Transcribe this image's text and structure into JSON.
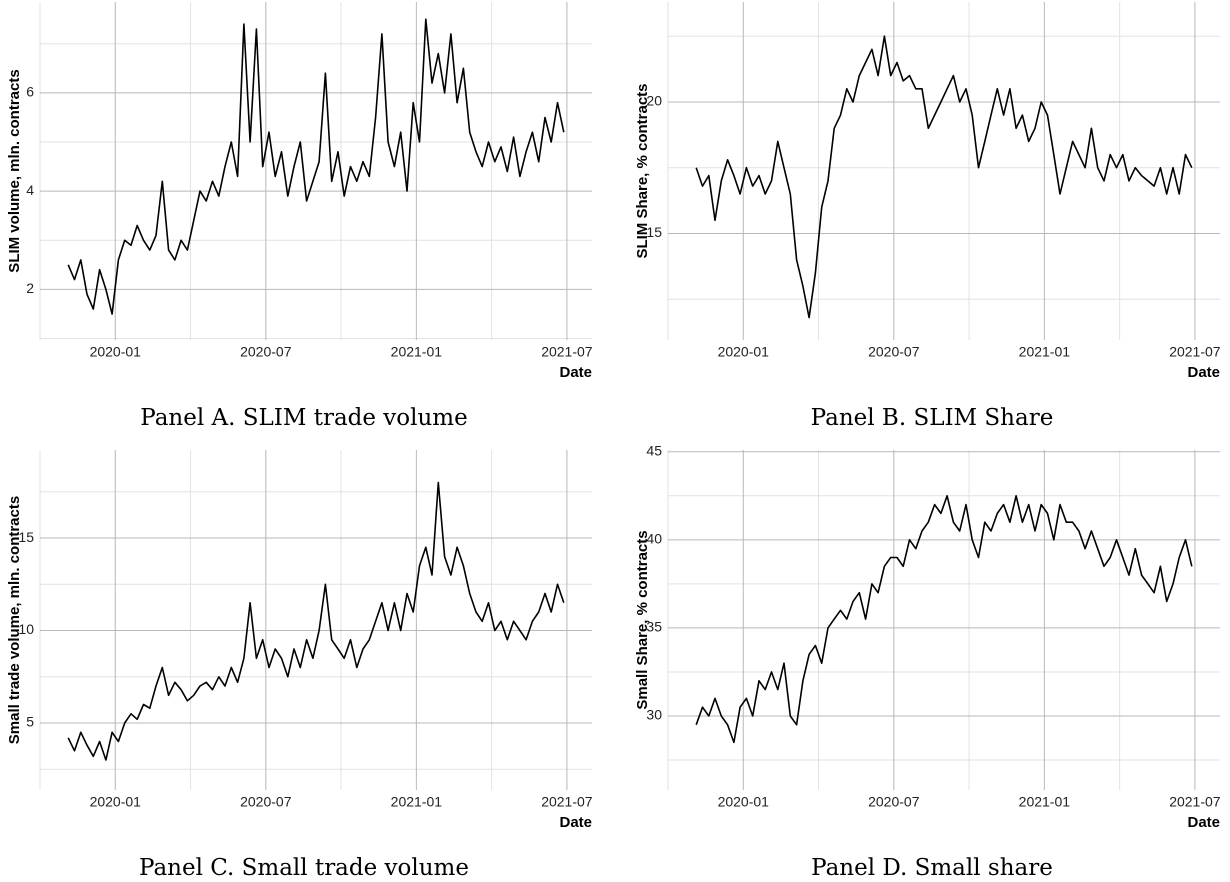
{
  "chart_data": [
    {
      "type": "line",
      "caption": "Panel A. SLIM trade volume",
      "ylabel": "SLIM volume, mln. contracts",
      "xlabel": "Date",
      "color": "#000000",
      "x": [
        "2019-11",
        "2019-11",
        "2019-11",
        "2019-11",
        "2019-12",
        "2019-12",
        "2019-12",
        "2019-12",
        "2020-01",
        "2020-01",
        "2020-01",
        "2020-01",
        "2020-02",
        "2020-02",
        "2020-02",
        "2020-02",
        "2020-03",
        "2020-03",
        "2020-03",
        "2020-03",
        "2020-04",
        "2020-04",
        "2020-04",
        "2020-04",
        "2020-05",
        "2020-05",
        "2020-05",
        "2020-05",
        "2020-06",
        "2020-06",
        "2020-06",
        "2020-06",
        "2020-07",
        "2020-07",
        "2020-07",
        "2020-07",
        "2020-08",
        "2020-08",
        "2020-08",
        "2020-08",
        "2020-09",
        "2020-09",
        "2020-09",
        "2020-09",
        "2020-10",
        "2020-10",
        "2020-10",
        "2020-10",
        "2020-11",
        "2020-11",
        "2020-11",
        "2020-11",
        "2020-12",
        "2020-12",
        "2020-12",
        "2020-12",
        "2021-01",
        "2021-01",
        "2021-01",
        "2021-01",
        "2021-02",
        "2021-02",
        "2021-02",
        "2021-02",
        "2021-03",
        "2021-03",
        "2021-03",
        "2021-03",
        "2021-04",
        "2021-04",
        "2021-04",
        "2021-04",
        "2021-05",
        "2021-05",
        "2021-05",
        "2021-05",
        "2021-06",
        "2021-06",
        "2021-06",
        "2021-06"
      ],
      "values": [
        2.5,
        2.2,
        2.6,
        1.9,
        1.6,
        2.4,
        2.0,
        1.5,
        2.6,
        3.0,
        2.9,
        3.3,
        3.0,
        2.8,
        3.1,
        4.2,
        2.8,
        2.6,
        3.0,
        2.8,
        3.4,
        4.0,
        3.8,
        4.2,
        3.9,
        4.5,
        5.0,
        4.3,
        7.4,
        5.0,
        7.3,
        4.5,
        5.2,
        4.3,
        4.8,
        3.9,
        4.5,
        5.0,
        3.8,
        4.2,
        4.6,
        6.4,
        4.2,
        4.8,
        3.9,
        4.5,
        4.2,
        4.6,
        4.3,
        5.5,
        7.2,
        5.0,
        4.5,
        5.2,
        4.0,
        5.8,
        5.0,
        7.5,
        6.2,
        6.8,
        6.0,
        7.2,
        5.8,
        6.5,
        5.2,
        4.8,
        4.5,
        5.0,
        4.6,
        4.9,
        4.4,
        5.1,
        4.3,
        4.8,
        5.2,
        4.6,
        5.5,
        5.0,
        5.8,
        5.2
      ],
      "xlim": [
        "2019-10",
        "2021-08"
      ],
      "xticks": [
        "2020-01",
        "2020-07",
        "2021-01",
        "2021-07"
      ],
      "xminor": [
        "2019-10",
        "2020-04",
        "2020-10",
        "2021-04"
      ],
      "ylim": [
        0.97,
        7.85
      ],
      "yticks": [
        2,
        4,
        6
      ],
      "yminor": [
        1,
        3,
        5,
        7
      ],
      "grid": true
    },
    {
      "type": "line",
      "caption": "Panel B. SLIM Share",
      "ylabel": "SLIM Share, % contracts",
      "xlabel": "Date",
      "color": "#000000",
      "x": [
        "2019-11",
        "2019-11",
        "2019-11",
        "2019-11",
        "2019-12",
        "2019-12",
        "2019-12",
        "2019-12",
        "2020-01",
        "2020-01",
        "2020-01",
        "2020-01",
        "2020-02",
        "2020-02",
        "2020-02",
        "2020-02",
        "2020-03",
        "2020-03",
        "2020-03",
        "2020-03",
        "2020-04",
        "2020-04",
        "2020-04",
        "2020-04",
        "2020-05",
        "2020-05",
        "2020-05",
        "2020-05",
        "2020-06",
        "2020-06",
        "2020-06",
        "2020-06",
        "2020-07",
        "2020-07",
        "2020-07",
        "2020-07",
        "2020-08",
        "2020-08",
        "2020-08",
        "2020-08",
        "2020-09",
        "2020-09",
        "2020-09",
        "2020-09",
        "2020-10",
        "2020-10",
        "2020-10",
        "2020-10",
        "2020-11",
        "2020-11",
        "2020-11",
        "2020-11",
        "2020-12",
        "2020-12",
        "2020-12",
        "2020-12",
        "2021-01",
        "2021-01",
        "2021-01",
        "2021-01",
        "2021-02",
        "2021-02",
        "2021-02",
        "2021-02",
        "2021-03",
        "2021-03",
        "2021-03",
        "2021-03",
        "2021-04",
        "2021-04",
        "2021-04",
        "2021-04",
        "2021-05",
        "2021-05",
        "2021-05",
        "2021-05",
        "2021-06",
        "2021-06",
        "2021-06",
        "2021-06"
      ],
      "values": [
        17.5,
        16.8,
        17.2,
        15.5,
        17.0,
        17.8,
        17.2,
        16.5,
        17.5,
        16.8,
        17.2,
        16.5,
        17.0,
        18.5,
        17.5,
        16.5,
        14.0,
        13.0,
        11.8,
        13.5,
        16.0,
        17.0,
        19.0,
        19.5,
        20.5,
        20.0,
        21.0,
        21.5,
        22.0,
        21.0,
        22.5,
        21.0,
        21.5,
        20.8,
        21.0,
        20.5,
        20.5,
        19.0,
        19.5,
        20.0,
        20.5,
        21.0,
        20.0,
        20.5,
        19.5,
        17.5,
        18.5,
        19.5,
        20.5,
        19.5,
        20.5,
        19.0,
        19.5,
        18.5,
        19.0,
        20.0,
        19.5,
        18.0,
        16.5,
        17.5,
        18.5,
        18.0,
        17.5,
        19.0,
        17.5,
        17.0,
        18.0,
        17.5,
        18.0,
        17.0,
        17.5,
        17.2,
        17.0,
        16.8,
        17.5,
        16.5,
        17.5,
        16.5,
        18.0,
        17.5
      ],
      "xlim": [
        "2019-10",
        "2021-08"
      ],
      "xticks": [
        "2020-01",
        "2020-07",
        "2021-01",
        "2021-07"
      ],
      "xminor": [
        "2019-10",
        "2020-04",
        "2020-10",
        "2021-04"
      ],
      "ylim": [
        10.95,
        23.8
      ],
      "yticks": [
        15,
        20
      ],
      "yminor": [
        12.5,
        17.5,
        22.5
      ],
      "grid": true
    },
    {
      "type": "line",
      "caption": "Panel C. Small trade volume",
      "ylabel": "Small trade volume, mln. contracts",
      "xlabel": "Date",
      "color": "#000000",
      "x": [
        "2019-11",
        "2019-11",
        "2019-11",
        "2019-11",
        "2019-12",
        "2019-12",
        "2019-12",
        "2019-12",
        "2020-01",
        "2020-01",
        "2020-01",
        "2020-01",
        "2020-02",
        "2020-02",
        "2020-02",
        "2020-02",
        "2020-03",
        "2020-03",
        "2020-03",
        "2020-03",
        "2020-04",
        "2020-04",
        "2020-04",
        "2020-04",
        "2020-05",
        "2020-05",
        "2020-05",
        "2020-05",
        "2020-06",
        "2020-06",
        "2020-06",
        "2020-06",
        "2020-07",
        "2020-07",
        "2020-07",
        "2020-07",
        "2020-08",
        "2020-08",
        "2020-08",
        "2020-08",
        "2020-09",
        "2020-09",
        "2020-09",
        "2020-09",
        "2020-10",
        "2020-10",
        "2020-10",
        "2020-10",
        "2020-11",
        "2020-11",
        "2020-11",
        "2020-11",
        "2020-12",
        "2020-12",
        "2020-12",
        "2020-12",
        "2021-01",
        "2021-01",
        "2021-01",
        "2021-01",
        "2021-02",
        "2021-02",
        "2021-02",
        "2021-02",
        "2021-03",
        "2021-03",
        "2021-03",
        "2021-03",
        "2021-04",
        "2021-04",
        "2021-04",
        "2021-04",
        "2021-05",
        "2021-05",
        "2021-05",
        "2021-05",
        "2021-06",
        "2021-06",
        "2021-06",
        "2021-06"
      ],
      "values": [
        4.2,
        3.5,
        4.5,
        3.8,
        3.2,
        4.0,
        3.0,
        4.5,
        4.0,
        5.0,
        5.5,
        5.2,
        6.0,
        5.8,
        7.0,
        8.0,
        6.5,
        7.2,
        6.8,
        6.2,
        6.5,
        7.0,
        7.2,
        6.8,
        7.5,
        7.0,
        8.0,
        7.2,
        8.5,
        11.5,
        8.5,
        9.5,
        8.0,
        9.0,
        8.5,
        7.5,
        9.0,
        8.0,
        9.5,
        8.5,
        10.0,
        12.5,
        9.5,
        9.0,
        8.5,
        9.5,
        8.0,
        9.0,
        9.5,
        10.5,
        11.5,
        10.0,
        11.5,
        10.0,
        12.0,
        11.0,
        13.5,
        14.5,
        13.0,
        18.0,
        14.0,
        13.0,
        14.5,
        13.5,
        12.0,
        11.0,
        10.5,
        11.5,
        10.0,
        10.5,
        9.5,
        10.5,
        10.0,
        9.5,
        10.5,
        11.0,
        12.0,
        11.0,
        12.5,
        11.5
      ],
      "xlim": [
        "2019-10",
        "2021-08"
      ],
      "xticks": [
        "2020-01",
        "2020-07",
        "2021-01",
        "2021-07"
      ],
      "xminor": [
        "2019-10",
        "2020-04",
        "2020-10",
        "2021-04"
      ],
      "ylim": [
        1.38,
        19.76
      ],
      "yticks": [
        5,
        10,
        15
      ],
      "yminor": [
        2.5,
        7.5,
        12.5,
        17.5
      ],
      "grid": true
    },
    {
      "type": "line",
      "caption": "Panel D. Small share",
      "ylabel": "Small Share, % contracts",
      "xlabel": "Date",
      "color": "#000000",
      "x": [
        "2019-11",
        "2019-11",
        "2019-11",
        "2019-11",
        "2019-12",
        "2019-12",
        "2019-12",
        "2019-12",
        "2020-01",
        "2020-01",
        "2020-01",
        "2020-01",
        "2020-02",
        "2020-02",
        "2020-02",
        "2020-02",
        "2020-03",
        "2020-03",
        "2020-03",
        "2020-03",
        "2020-04",
        "2020-04",
        "2020-04",
        "2020-04",
        "2020-05",
        "2020-05",
        "2020-05",
        "2020-05",
        "2020-06",
        "2020-06",
        "2020-06",
        "2020-06",
        "2020-07",
        "2020-07",
        "2020-07",
        "2020-07",
        "2020-08",
        "2020-08",
        "2020-08",
        "2020-08",
        "2020-09",
        "2020-09",
        "2020-09",
        "2020-09",
        "2020-10",
        "2020-10",
        "2020-10",
        "2020-10",
        "2020-11",
        "2020-11",
        "2020-11",
        "2020-11",
        "2020-12",
        "2020-12",
        "2020-12",
        "2020-12",
        "2021-01",
        "2021-01",
        "2021-01",
        "2021-01",
        "2021-02",
        "2021-02",
        "2021-02",
        "2021-02",
        "2021-03",
        "2021-03",
        "2021-03",
        "2021-03",
        "2021-04",
        "2021-04",
        "2021-04",
        "2021-04",
        "2021-05",
        "2021-05",
        "2021-05",
        "2021-05",
        "2021-06",
        "2021-06",
        "2021-06",
        "2021-06"
      ],
      "values": [
        29.5,
        30.5,
        30.0,
        31.0,
        30.0,
        29.5,
        28.5,
        30.5,
        31.0,
        30.0,
        32.0,
        31.5,
        32.5,
        31.5,
        33.0,
        30.0,
        29.5,
        32.0,
        33.5,
        34.0,
        33.0,
        35.0,
        35.5,
        36.0,
        35.5,
        36.5,
        37.0,
        35.5,
        37.5,
        37.0,
        38.5,
        39.0,
        39.0,
        38.5,
        40.0,
        39.5,
        40.5,
        41.0,
        42.0,
        41.5,
        42.5,
        41.0,
        40.5,
        42.0,
        40.0,
        39.0,
        41.0,
        40.5,
        41.5,
        42.0,
        41.0,
        42.5,
        41.0,
        42.0,
        40.5,
        42.0,
        41.5,
        40.0,
        42.0,
        41.0,
        41.0,
        40.5,
        39.5,
        40.5,
        39.5,
        38.5,
        39.0,
        40.0,
        39.0,
        38.0,
        39.5,
        38.0,
        37.5,
        37.0,
        38.5,
        36.5,
        37.5,
        39.0,
        40.0,
        38.5
      ],
      "xlim": [
        "2019-10",
        "2021-08"
      ],
      "xticks": [
        "2020-01",
        "2020-07",
        "2021-01",
        "2021-07"
      ],
      "xminor": [
        "2019-10",
        "2020-04",
        "2020-10",
        "2021-04"
      ],
      "ylim": [
        25.8,
        45.1
      ],
      "yticks": [
        30,
        35,
        40,
        45
      ],
      "yminor": [
        27.5,
        32.5,
        37.5,
        42.5
      ],
      "grid": true
    }
  ]
}
